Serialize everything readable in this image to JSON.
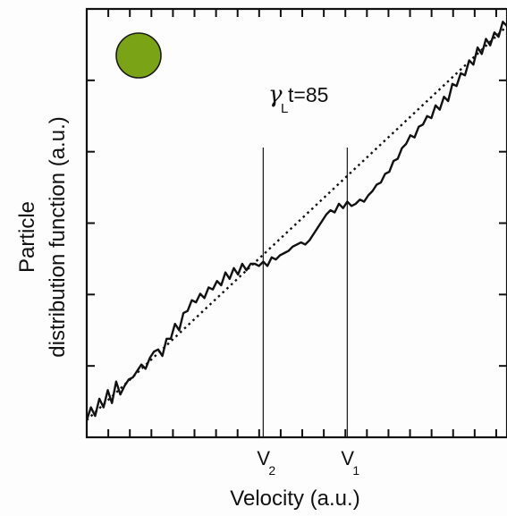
{
  "chart_data": {
    "type": "line",
    "xlabel": "Velocity (a.u.)",
    "ylabel_line1": "Particle",
    "ylabel_line2": "distribution function (a.u.)",
    "xlim": [
      0,
      10
    ],
    "ylim": [
      0,
      10
    ],
    "x_ticks_count": 19,
    "y_ticks_count": 6,
    "tick_labels": "none",
    "grid": false,
    "annotation": {
      "greek": "γ",
      "subscript": "L",
      "rest": "t=85"
    },
    "marker_circle_color": "#7aa315",
    "vertical_lines": [
      {
        "name": "v2",
        "label_main": "V",
        "label_sub": "2",
        "x": 4.2
      },
      {
        "name": "v1",
        "label_main": "V",
        "label_sub": "1",
        "x": 6.2
      }
    ],
    "series": [
      {
        "style": "solid",
        "x": [
          0.0,
          0.1,
          0.2,
          0.3,
          0.4,
          0.5,
          0.6,
          0.7,
          0.8,
          0.9,
          1.0,
          1.1,
          1.2,
          1.3,
          1.4,
          1.5,
          1.6,
          1.7,
          1.8,
          1.9,
          2.0,
          2.1,
          2.2,
          2.3,
          2.4,
          2.5,
          2.6,
          2.7,
          2.8,
          2.9,
          3.0,
          3.1,
          3.2,
          3.3,
          3.4,
          3.5,
          3.6,
          3.7,
          3.8,
          3.9,
          4.0,
          4.1,
          4.2,
          4.3,
          4.4,
          4.5,
          4.6,
          4.7,
          4.8,
          4.9,
          5.0,
          5.1,
          5.2,
          5.3,
          5.4,
          5.5,
          5.6,
          5.7,
          5.8,
          5.9,
          6.0,
          6.1,
          6.2,
          6.3,
          6.4,
          6.5,
          6.6,
          6.7,
          6.8,
          6.9,
          7.0,
          7.1,
          7.2,
          7.3,
          7.4,
          7.5,
          7.6,
          7.7,
          7.8,
          7.9,
          8.0,
          8.1,
          8.2,
          8.3,
          8.4,
          8.5,
          8.6,
          8.7,
          8.8,
          8.9,
          9.0,
          9.1,
          9.2,
          9.3,
          9.4,
          9.5,
          9.6,
          9.7,
          9.8,
          9.9,
          10.0
        ],
        "y": [
          0.4,
          0.7,
          0.5,
          0.9,
          0.7,
          1.1,
          0.8,
          1.3,
          1.0,
          1.2,
          1.35,
          1.4,
          1.55,
          1.7,
          1.6,
          1.85,
          2.0,
          2.05,
          1.9,
          2.3,
          2.3,
          2.65,
          2.5,
          2.9,
          2.95,
          3.2,
          3.15,
          3.35,
          3.25,
          3.5,
          3.45,
          3.65,
          3.55,
          3.85,
          3.7,
          3.95,
          3.8,
          4.05,
          3.9,
          4.05,
          4.05,
          4.0,
          4.1,
          4.0,
          4.2,
          4.15,
          4.25,
          4.3,
          4.35,
          4.45,
          4.5,
          4.55,
          4.5,
          4.6,
          4.75,
          4.9,
          5.05,
          5.2,
          5.3,
          5.25,
          5.45,
          5.35,
          5.5,
          5.4,
          5.45,
          5.55,
          5.5,
          5.65,
          5.75,
          5.9,
          5.95,
          6.15,
          6.2,
          6.45,
          6.5,
          6.75,
          6.85,
          7.05,
          7.0,
          7.25,
          7.3,
          7.5,
          7.45,
          7.75,
          7.65,
          7.95,
          7.85,
          8.25,
          8.2,
          8.5,
          8.45,
          8.8,
          8.7,
          9.1,
          8.95,
          9.3,
          9.15,
          9.45,
          9.35,
          9.7,
          9.6
        ]
      },
      {
        "style": "dotted",
        "x": [
          0.0,
          10.0
        ],
        "y": [
          0.4,
          9.6
        ]
      }
    ]
  }
}
